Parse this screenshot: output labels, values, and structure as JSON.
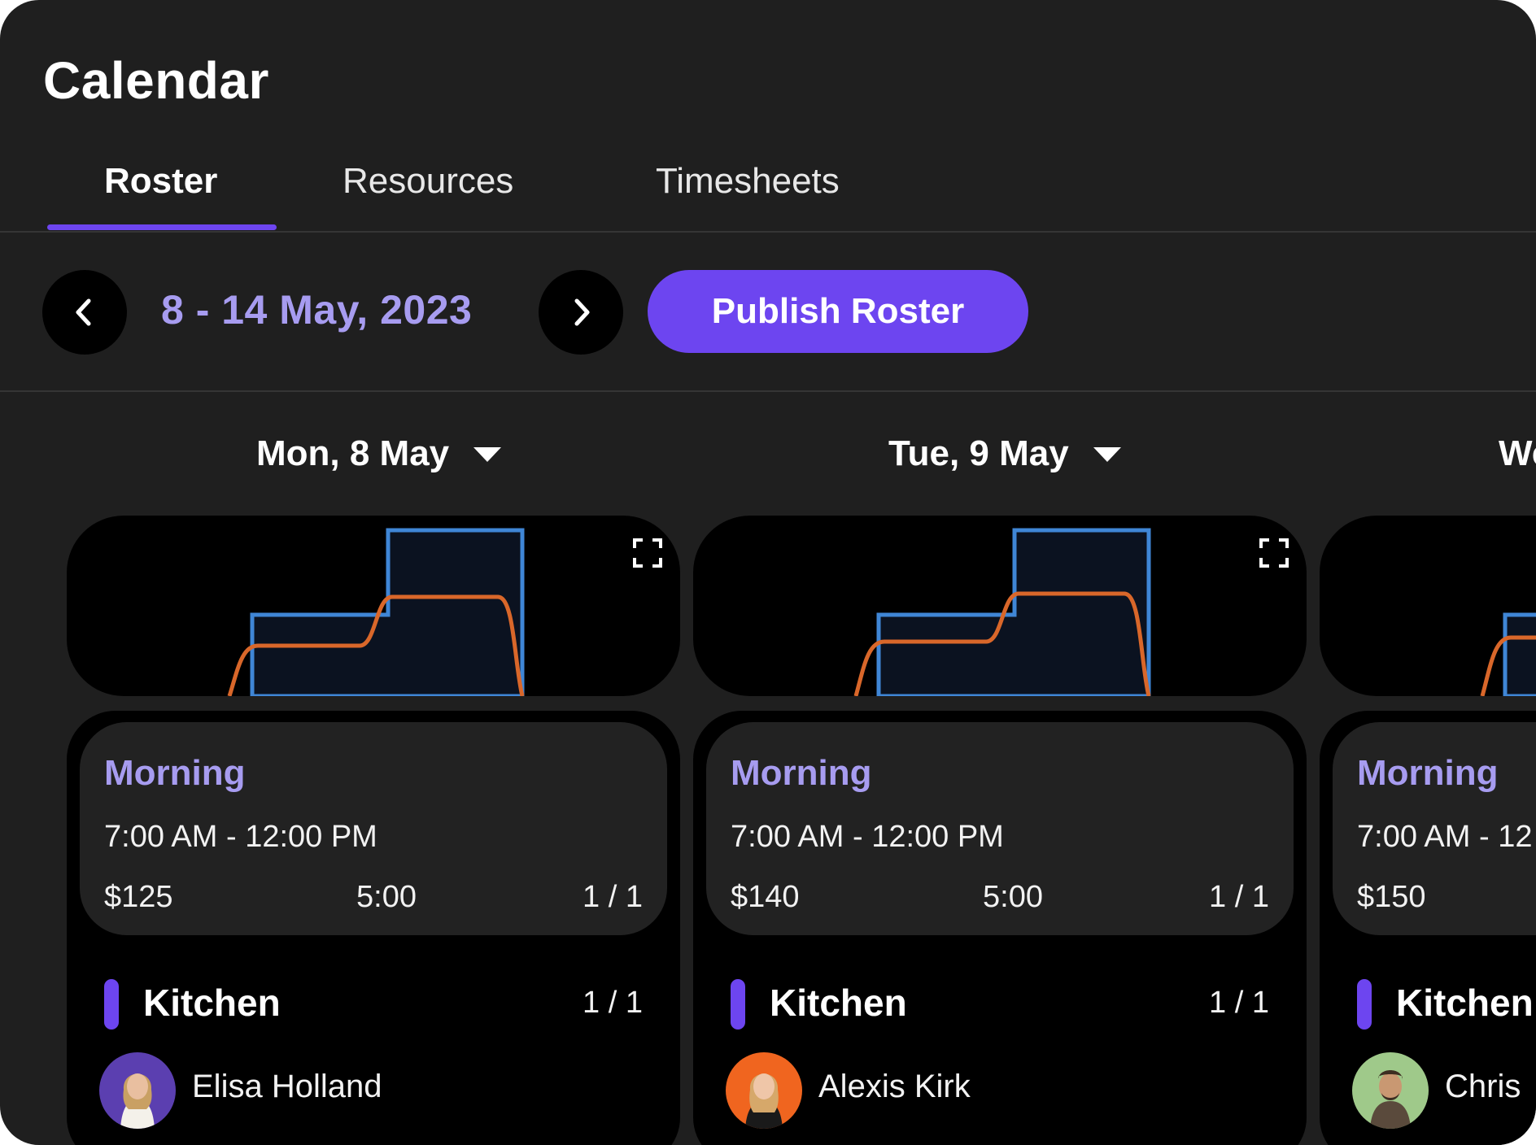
{
  "header": {
    "title": "Calendar"
  },
  "tabs": [
    {
      "label": "Roster",
      "active": true
    },
    {
      "label": "Resources",
      "active": false
    },
    {
      "label": "Timesheets",
      "active": false
    }
  ],
  "toolbar": {
    "prev_icon": "chevron-left-icon",
    "next_icon": "chevron-right-icon",
    "date_range": "8 - 14 May, 2023",
    "publish_label": "Publish Roster"
  },
  "colors": {
    "accent": "#6d45f0",
    "accent_text": "#a79cf0",
    "chart_capacity": "#3f86d6",
    "chart_demand": "#d9672a"
  },
  "days": [
    {
      "label": "Mon, 8 May",
      "shift": {
        "name": "Morning",
        "time": "7:00 AM - 12:00 PM",
        "cost": "$125",
        "hours": "5:00",
        "count": "1 / 1"
      },
      "department": {
        "name": "Kitchen",
        "count": "1 / 1"
      },
      "staff": [
        {
          "name": "Elisa Holland",
          "avatar_color": "#5b3fb0"
        }
      ]
    },
    {
      "label": "Tue, 9 May",
      "shift": {
        "name": "Morning",
        "time": "7:00 AM - 12:00 PM",
        "cost": "$140",
        "hours": "5:00",
        "count": "1 / 1"
      },
      "department": {
        "name": "Kitchen",
        "count": "1 / 1"
      },
      "staff": [
        {
          "name": "Alexis Kirk",
          "avatar_color": "#f0651f"
        }
      ]
    },
    {
      "label": "We",
      "shift": {
        "name": "Morning",
        "time": "7:00 AM - 12",
        "cost": "$150",
        "hours": "",
        "count": ""
      },
      "department": {
        "name": "Kitchen",
        "count": ""
      },
      "staff": [
        {
          "name": "Chris",
          "avatar_color": "#9fc98a"
        }
      ]
    }
  ]
}
